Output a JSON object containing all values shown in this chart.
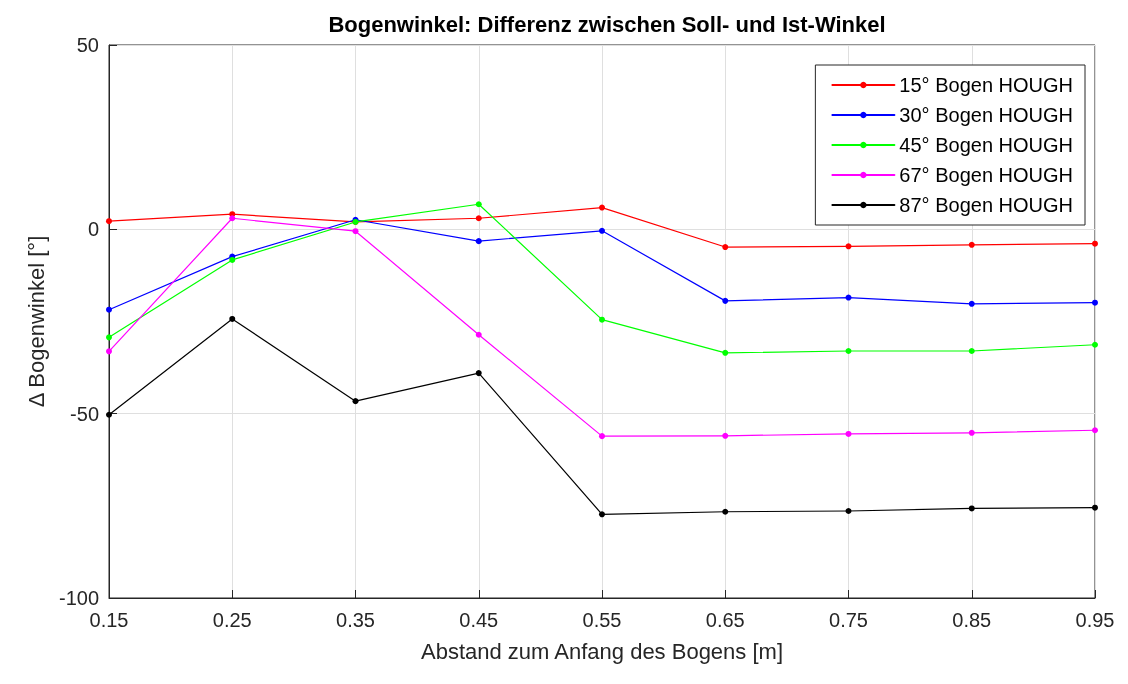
{
  "chart_data": {
    "type": "line",
    "title": "Bogenwinkel: Differenz zwischen Soll- und Ist-Winkel",
    "xlabel": "Abstand zum Anfang des Bogens [m]",
    "ylabel": "Δ Bogenwinkel [°]",
    "x": [
      0.15,
      0.25,
      0.35,
      0.45,
      0.55,
      0.65,
      0.75,
      0.85,
      0.95
    ],
    "xlim": [
      0.15,
      0.95
    ],
    "xticks": [
      0.15,
      0.25,
      0.35,
      0.45,
      0.55,
      0.65,
      0.75,
      0.85,
      0.95
    ],
    "ylim": [
      -100,
      50
    ],
    "yticks": [
      -100,
      -50,
      0,
      50
    ],
    "grid": true,
    "legend": "top right",
    "marker": "circle",
    "line_style": "solid",
    "series": [
      {
        "name": "15° Bogen HOUGH",
        "color": "#ff0000",
        "values": [
          2.2,
          4.1,
          2.0,
          3.0,
          5.9,
          -4.8,
          -4.6,
          -4.2,
          -3.9
        ]
      },
      {
        "name": "30° Bogen HOUGH",
        "color": "#0000ff",
        "values": [
          -21.8,
          -7.4,
          2.6,
          -3.2,
          -0.4,
          -19.4,
          -18.5,
          -20.2,
          -19.9
        ]
      },
      {
        "name": "45° Bogen HOUGH",
        "color": "#00ff00",
        "values": [
          -29.3,
          -8.3,
          2.0,
          6.8,
          -24.5,
          -33.5,
          -33.0,
          -33.0,
          -31.3
        ]
      },
      {
        "name": "67° Bogen HOUGH",
        "color": "#ff00ff",
        "values": [
          -33.1,
          3.0,
          -0.5,
          -28.6,
          -56.1,
          -56.0,
          -55.5,
          -55.2,
          -54.5
        ]
      },
      {
        "name": "87° Bogen HOUGH",
        "color": "#000000",
        "values": [
          -50.3,
          -24.3,
          -46.6,
          -39.0,
          -77.3,
          -76.6,
          -76.4,
          -75.7,
          -75.5
        ]
      }
    ]
  }
}
